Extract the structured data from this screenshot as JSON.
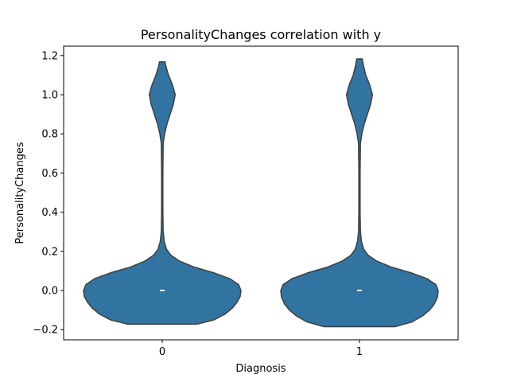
{
  "chart_data": {
    "type": "violin",
    "title": "PersonalityChanges correlation with y",
    "xlabel": "Diagnosis",
    "ylabel": "PersonalityChanges",
    "categories": [
      "0",
      "1"
    ],
    "ylim": [
      -0.25,
      1.25
    ],
    "yticks": [
      -0.2,
      0.0,
      0.2,
      0.4,
      0.6,
      0.8,
      1.0,
      1.2
    ],
    "ytick_labels": [
      "−0.2",
      "0.0",
      "0.2",
      "0.4",
      "0.6",
      "0.8",
      "1.0",
      "1.2"
    ],
    "color": "#3274a1",
    "edge_color": "#3f3f3f",
    "violins": [
      {
        "category": "0",
        "range": [
          -0.172,
          1.168
        ],
        "median": 0.0,
        "density_profile": [
          [
            -0.172,
            0.44
          ],
          [
            -0.15,
            0.66
          ],
          [
            -0.12,
            0.8
          ],
          [
            -0.09,
            0.89
          ],
          [
            -0.06,
            0.95
          ],
          [
            -0.03,
            0.99
          ],
          [
            0.0,
            1.0
          ],
          [
            0.03,
            0.97
          ],
          [
            0.06,
            0.86
          ],
          [
            0.09,
            0.66
          ],
          [
            0.12,
            0.4
          ],
          [
            0.15,
            0.22
          ],
          [
            0.18,
            0.11
          ],
          [
            0.21,
            0.055
          ],
          [
            0.25,
            0.025
          ],
          [
            0.3,
            0.012
          ],
          [
            0.4,
            0.008
          ],
          [
            0.6,
            0.008
          ],
          [
            0.75,
            0.012
          ],
          [
            0.8,
            0.03
          ],
          [
            0.85,
            0.06
          ],
          [
            0.9,
            0.1
          ],
          [
            0.95,
            0.14
          ],
          [
            1.0,
            0.165
          ],
          [
            1.05,
            0.13
          ],
          [
            1.1,
            0.08
          ],
          [
            1.14,
            0.05
          ],
          [
            1.168,
            0.035
          ]
        ]
      },
      {
        "category": "1",
        "range": [
          -0.185,
          1.183
        ],
        "median": 0.0,
        "density_profile": [
          [
            -0.185,
            0.45
          ],
          [
            -0.16,
            0.67
          ],
          [
            -0.13,
            0.8
          ],
          [
            -0.1,
            0.89
          ],
          [
            -0.07,
            0.95
          ],
          [
            -0.035,
            0.99
          ],
          [
            0.0,
            1.0
          ],
          [
            0.03,
            0.97
          ],
          [
            0.06,
            0.86
          ],
          [
            0.09,
            0.66
          ],
          [
            0.12,
            0.4
          ],
          [
            0.15,
            0.22
          ],
          [
            0.18,
            0.11
          ],
          [
            0.21,
            0.055
          ],
          [
            0.25,
            0.025
          ],
          [
            0.3,
            0.012
          ],
          [
            0.4,
            0.008
          ],
          [
            0.6,
            0.008
          ],
          [
            0.75,
            0.012
          ],
          [
            0.8,
            0.03
          ],
          [
            0.85,
            0.06
          ],
          [
            0.9,
            0.1
          ],
          [
            0.95,
            0.14
          ],
          [
            1.0,
            0.165
          ],
          [
            1.05,
            0.13
          ],
          [
            1.1,
            0.08
          ],
          [
            1.15,
            0.05
          ],
          [
            1.183,
            0.035
          ]
        ]
      }
    ]
  }
}
